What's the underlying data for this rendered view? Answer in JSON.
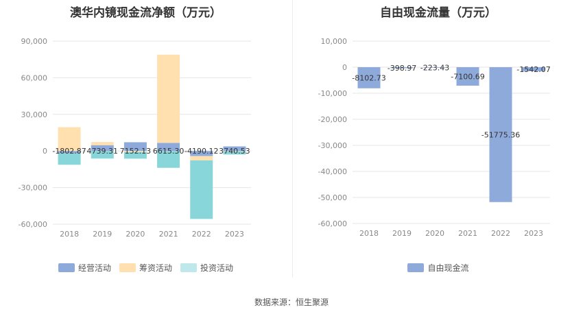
{
  "source_text": "数据来源：恒生聚源",
  "chart_data": [
    {
      "type": "bar",
      "stacked": true,
      "title": "澳华内镜现金流净额（万元）",
      "categories": [
        "2018",
        "2019",
        "2020",
        "2021",
        "2022",
        "2023"
      ],
      "ylim": [
        -60000,
        90000
      ],
      "yticks": [
        -60000,
        -30000,
        0,
        30000,
        60000,
        90000
      ],
      "ytick_labels": [
        "-60,000",
        "-30,000",
        "0",
        "30,000",
        "60,000",
        "90,000"
      ],
      "grid": true,
      "legend": "bottom",
      "series": [
        {
          "name": "经营活动",
          "color": "#8EAADB",
          "values": [
            -1802.87,
            4739.31,
            7152.13,
            6615.3,
            -4190.12,
            3740.53
          ]
        },
        {
          "name": "筹资活动",
          "color": "#FFE0AE",
          "values": [
            19500,
            2600,
            -800,
            72300,
            -3500,
            -200
          ]
        },
        {
          "name": "投资活动",
          "color": "#88D6D9",
          "values": [
            -9500,
            -6200,
            -5500,
            -13800,
            -48000,
            -2700
          ]
        }
      ],
      "data_labels": [
        "-1802.87",
        "4739.31",
        "7152.13",
        "6615.30",
        "-4190.12",
        "3740.53"
      ]
    },
    {
      "type": "bar",
      "title": "自由现金流量（万元）",
      "categories": [
        "2018",
        "2019",
        "2020",
        "2021",
        "2022",
        "2023"
      ],
      "ylim": [
        -60000,
        10000
      ],
      "yticks": [
        -60000,
        -50000,
        -40000,
        -30000,
        -20000,
        -10000,
        0,
        10000
      ],
      "ytick_labels": [
        "-60,000",
        "-50,000",
        "-40,000",
        "-30,000",
        "-20,000",
        "-10,000",
        "0",
        "10,000"
      ],
      "grid": true,
      "legend": "bottom",
      "series": [
        {
          "name": "自由现金流",
          "color": "#8EAADB",
          "values": [
            -8102.73,
            -398.97,
            -223.43,
            -7100.69,
            -51775.36,
            -1542.07
          ]
        }
      ],
      "data_labels": [
        "-8102.73",
        "-398.97",
        "-223.43",
        "-7100.69",
        "-51775.36",
        "-1542.07"
      ]
    }
  ]
}
